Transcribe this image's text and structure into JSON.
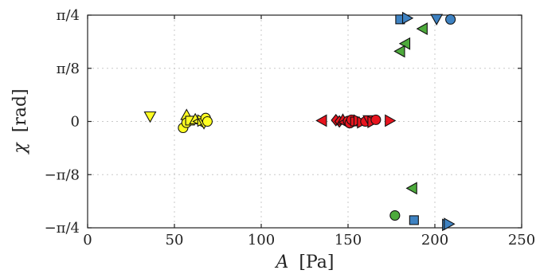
{
  "chart_data": {
    "type": "scatter",
    "xlabel_var": "A",
    "xlabel_unit": "[Pa]",
    "ylabel_var": "χ",
    "ylabel_unit": "[rad]",
    "xlim": [
      0,
      250
    ],
    "ylim_units_of_pi": [
      -0.25,
      0.25
    ],
    "x_ticks": [
      0,
      50,
      100,
      150,
      200,
      250
    ],
    "x_tick_labels": [
      "0",
      "50",
      "100",
      "150",
      "200",
      "250"
    ],
    "y_ticks_units_of_pi": [
      -0.25,
      -0.125,
      0,
      0.125,
      0.25
    ],
    "y_tick_labels": [
      "−π/4",
      "−π/8",
      "0",
      "π/8",
      "π/4"
    ],
    "grid": true,
    "colors": {
      "yellow": "#ffff22",
      "red": "#e8141e",
      "green": "#4daa3c",
      "blue": "#3e82c2"
    },
    "series": [
      {
        "color": "yellow",
        "points": [
          {
            "x": 36,
            "y": 0.012,
            "marker": "triangle-down"
          },
          {
            "x": 57,
            "y": 0.015,
            "marker": "triangle-up"
          },
          {
            "x": 55,
            "y": -0.015,
            "marker": "circle"
          },
          {
            "x": 57,
            "y": -0.003,
            "marker": "circle"
          },
          {
            "x": 59,
            "y": 0.002,
            "marker": "square"
          },
          {
            "x": 62,
            "y": 0.005,
            "marker": "triangle-up"
          },
          {
            "x": 64,
            "y": 0.0,
            "marker": "triangle-left"
          },
          {
            "x": 66,
            "y": 0.002,
            "marker": "triangle-right"
          },
          {
            "x": 67,
            "y": -0.004,
            "marker": "triangle-down"
          },
          {
            "x": 68,
            "y": 0.008,
            "marker": "circle"
          },
          {
            "x": 69,
            "y": 0.0,
            "marker": "circle"
          }
        ]
      },
      {
        "color": "red",
        "points": [
          {
            "x": 135,
            "y": 0.002,
            "marker": "triangle-left"
          },
          {
            "x": 143,
            "y": 0.003,
            "marker": "diamond"
          },
          {
            "x": 145,
            "y": 0.0,
            "marker": "diamond"
          },
          {
            "x": 147,
            "y": 0.004,
            "marker": "triangle-up"
          },
          {
            "x": 148,
            "y": -0.002,
            "marker": "triangle-left"
          },
          {
            "x": 150,
            "y": 0.001,
            "marker": "circle"
          },
          {
            "x": 151,
            "y": -0.004,
            "marker": "circle"
          },
          {
            "x": 152,
            "y": 0.004,
            "marker": "circle"
          },
          {
            "x": 154,
            "y": 0.0,
            "marker": "square"
          },
          {
            "x": 156,
            "y": 0.002,
            "marker": "triangle-right"
          },
          {
            "x": 158,
            "y": -0.002,
            "marker": "triangle-right"
          },
          {
            "x": 160,
            "y": 0.0,
            "marker": "circle"
          },
          {
            "x": 162,
            "y": 0.003,
            "marker": "triangle-down"
          },
          {
            "x": 164,
            "y": -0.001,
            "marker": "triangle-right"
          },
          {
            "x": 166,
            "y": 0.004,
            "marker": "circle"
          },
          {
            "x": 174,
            "y": 0.002,
            "marker": "triangle-right"
          }
        ]
      },
      {
        "color": "green",
        "points": [
          {
            "x": 193,
            "y": 0.218,
            "marker": "triangle-left"
          },
          {
            "x": 183,
            "y": 0.183,
            "marker": "triangle-left"
          },
          {
            "x": 180,
            "y": 0.165,
            "marker": "triangle-left"
          },
          {
            "x": 187,
            "y": -0.157,
            "marker": "triangle-left"
          },
          {
            "x": 177,
            "y": -0.221,
            "marker": "circle"
          }
        ]
      },
      {
        "color": "blue",
        "points": [
          {
            "x": 180,
            "y": 0.24,
            "marker": "square"
          },
          {
            "x": 184,
            "y": 0.243,
            "marker": "triangle-right"
          },
          {
            "x": 201,
            "y": 0.241,
            "marker": "triangle-down"
          },
          {
            "x": 209,
            "y": 0.24,
            "marker": "circle"
          },
          {
            "x": 188,
            "y": -0.232,
            "marker": "square"
          },
          {
            "x": 207,
            "y": -0.243,
            "marker": "triangle-right"
          },
          {
            "x": 208,
            "y": -0.241,
            "marker": "triangle-right"
          }
        ]
      }
    ]
  }
}
